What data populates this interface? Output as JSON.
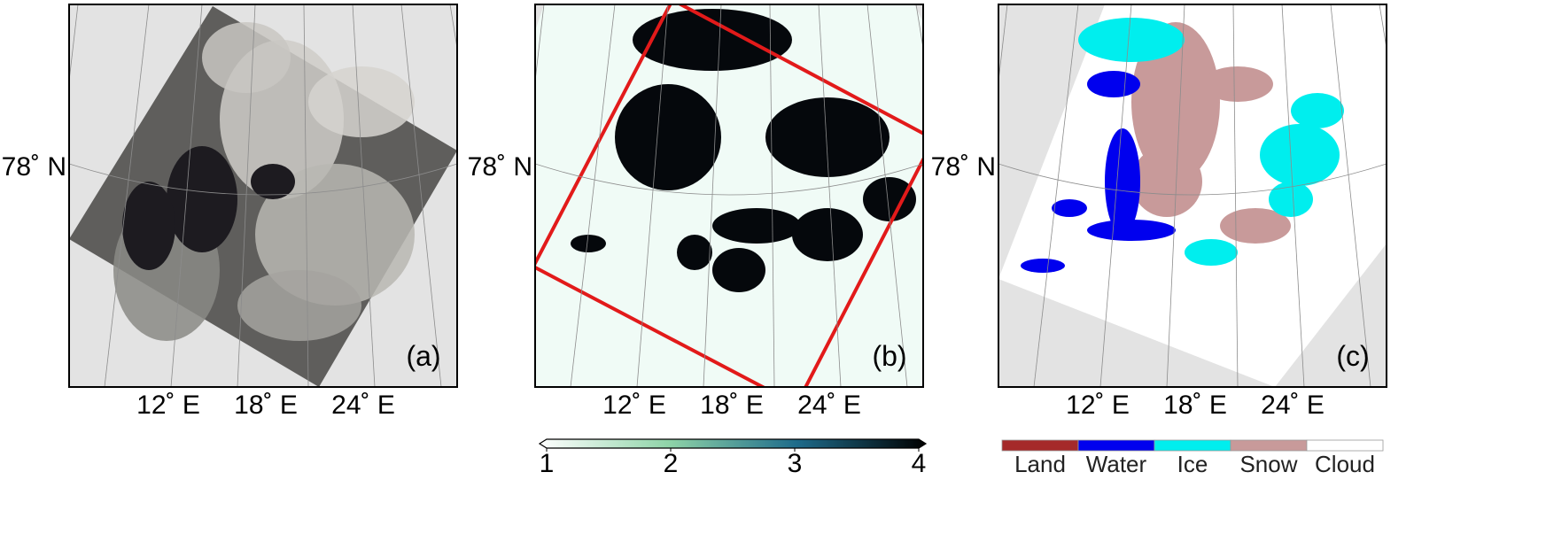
{
  "panels": [
    {
      "label": "(a)",
      "lat_label": "78˚ N",
      "lon_labels": [
        "12˚ E",
        "18˚ E",
        "24˚ E"
      ]
    },
    {
      "label": "(b)",
      "lat_label": "78˚ N",
      "lon_labels": [
        "12˚ E",
        "18˚ E",
        "24˚ E"
      ]
    },
    {
      "label": "(c)",
      "lat_label": "78˚ N",
      "lon_labels": [
        "12˚ E",
        "18˚ E",
        "24˚ E"
      ]
    }
  ],
  "colorbar": {
    "range": [
      1,
      4
    ],
    "ticks": [
      1,
      2,
      3,
      4
    ],
    "colors": [
      "#ffffff",
      "#8fd4a8",
      "#1e6b8a",
      "#000000"
    ]
  },
  "legend": {
    "items": [
      {
        "name": "Land",
        "color": "#a52a2a"
      },
      {
        "name": "Water",
        "color": "#0000ee"
      },
      {
        "name": "Ice",
        "color": "#00eeee"
      },
      {
        "name": "Snow",
        "color": "#c89a9a"
      },
      {
        "name": "Cloud",
        "color": "#ffffff"
      }
    ]
  }
}
